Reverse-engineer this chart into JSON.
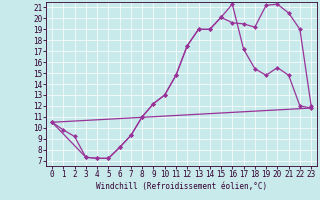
{
  "xlabel": "Windchill (Refroidissement éolien,°C)",
  "bg_color": "#c8eaea",
  "line_color": "#993399",
  "spine_color": "#330033",
  "xlim": [
    -0.5,
    23.5
  ],
  "ylim": [
    6.5,
    21.5
  ],
  "xticks": [
    0,
    1,
    2,
    3,
    4,
    5,
    6,
    7,
    8,
    9,
    10,
    11,
    12,
    13,
    14,
    15,
    16,
    17,
    18,
    19,
    20,
    21,
    22,
    23
  ],
  "yticks": [
    7,
    8,
    9,
    10,
    11,
    12,
    13,
    14,
    15,
    16,
    17,
    18,
    19,
    20,
    21
  ],
  "line1_x": [
    0,
    1,
    2,
    3,
    4,
    5,
    6,
    7,
    8,
    9,
    10,
    11,
    12,
    13,
    14,
    15,
    16,
    17,
    18,
    19,
    20,
    21,
    22,
    23
  ],
  "line1_y": [
    10.5,
    9.8,
    9.2,
    7.3,
    7.2,
    7.2,
    8.2,
    9.3,
    11.0,
    12.2,
    13.0,
    14.8,
    17.5,
    19.0,
    19.0,
    20.1,
    19.6,
    19.5,
    19.2,
    21.2,
    21.3,
    20.5,
    19.0,
    12.0
  ],
  "line2_x": [
    0,
    3,
    4,
    5,
    6,
    7,
    8,
    9,
    10,
    11,
    12,
    13,
    14,
    15,
    16,
    17,
    18,
    19,
    20,
    21,
    22,
    23
  ],
  "line2_y": [
    10.5,
    7.3,
    7.2,
    7.2,
    8.2,
    9.3,
    11.0,
    12.2,
    13.0,
    14.8,
    17.5,
    19.0,
    19.0,
    20.1,
    21.3,
    17.2,
    15.4,
    14.8,
    15.5,
    14.8,
    12.0,
    11.8
  ],
  "line3_x": [
    0,
    23
  ],
  "line3_y": [
    10.5,
    11.8
  ],
  "marker_size": 2.5,
  "linewidth": 0.9,
  "tick_fontsize": 5.5,
  "xlabel_fontsize": 5.5
}
